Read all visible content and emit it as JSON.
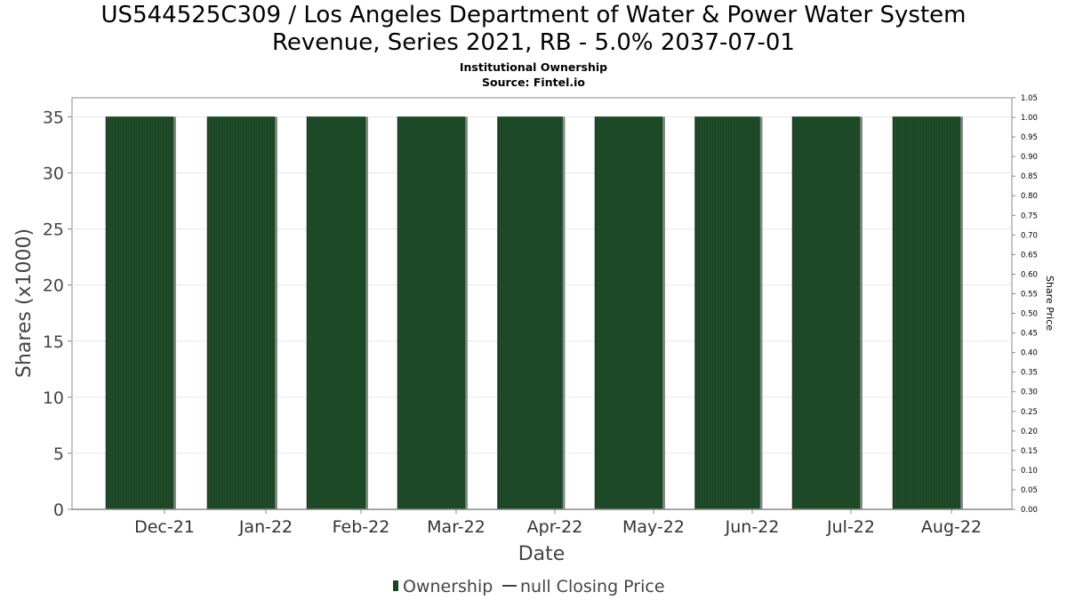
{
  "chart_data": {
    "type": "bar",
    "title_lines": [
      "US544525C309 / Los Angeles Department of Water & Power Water System",
      "Revenue, Series 2021, RB - 5.0% 2037-07-01"
    ],
    "subtitle": "Institutional Ownership",
    "source": "Source: Fintel.io",
    "xlabel": "Date",
    "ylabel": "Shares (x1000)",
    "y2label": "Share Price",
    "categories": [
      "Dec-21",
      "Jan-22",
      "Feb-22",
      "Mar-22",
      "Apr-22",
      "May-22",
      "Jun-22",
      "Jul-22",
      "Aug-22"
    ],
    "series": [
      {
        "name": "Ownership",
        "values": [
          35,
          35,
          35,
          35,
          35,
          35,
          35,
          35,
          35
        ]
      }
    ],
    "ylim": [
      0,
      36.7
    ],
    "yticks": [
      "0",
      "5",
      "10",
      "15",
      "20",
      "25",
      "30",
      "35"
    ],
    "y2lim": [
      0,
      1.05
    ],
    "y2ticks": [
      "0.00",
      "0.05",
      "0.10",
      "0.15",
      "0.20",
      "0.25",
      "0.30",
      "0.35",
      "0.40",
      "0.45",
      "0.50",
      "0.55",
      "0.60",
      "0.65",
      "0.70",
      "0.75",
      "0.80",
      "0.85",
      "0.90",
      "0.95",
      "1.00",
      "1.05"
    ],
    "legend": [
      "Ownership",
      "null Closing Price"
    ],
    "legend_position": "bottom",
    "grid": true,
    "colors": {
      "bar": "#1a4524",
      "bar_shadow": "#888888",
      "grid": "#e6e6e6",
      "axis": "#888888"
    }
  }
}
